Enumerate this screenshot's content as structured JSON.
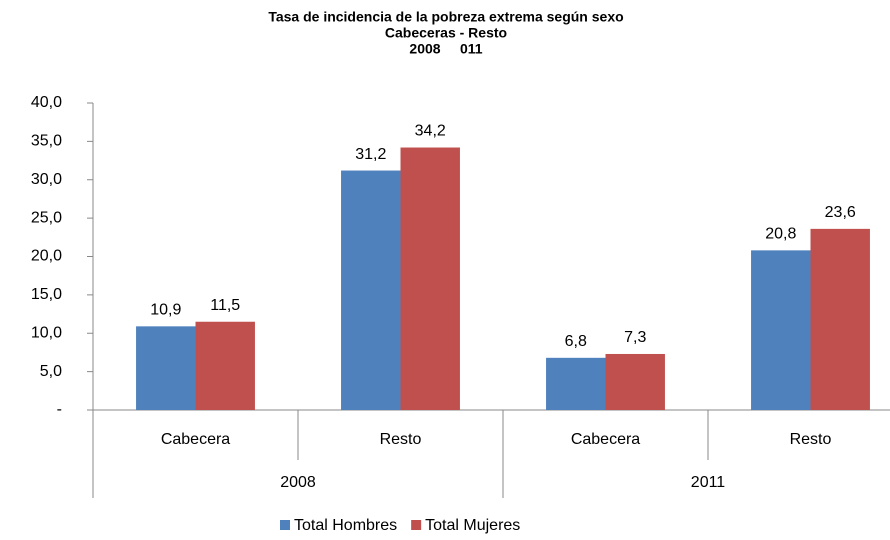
{
  "chart_data": {
    "type": "bar",
    "title": "Tasa de incidencia de la pobreza extrema según sexo",
    "subtitle": [
      "Cabeceras - Resto",
      "2008     011"
    ],
    "categories": [
      "Cabecera",
      "Resto",
      "Cabecera",
      "Resto"
    ],
    "category_groups": [
      "2008",
      "2011"
    ],
    "series": [
      {
        "name": "Total Hombres",
        "color": "#4f81bd",
        "values": [
          10.9,
          31.2,
          6.8,
          20.8
        ],
        "value_labels": [
          "10,9",
          "31,2",
          "6,8",
          "20,8"
        ]
      },
      {
        "name": "Total Mujeres",
        "color": "#c0504d",
        "values": [
          11.5,
          34.2,
          7.3,
          23.6
        ],
        "value_labels": [
          "11,5",
          "34,2",
          "7,3",
          "23,6"
        ]
      }
    ],
    "ylim": [
      0,
      40
    ],
    "yticks": [
      {
        "value": 0,
        "label": "-"
      },
      {
        "value": 5,
        "label": "5,0"
      },
      {
        "value": 10,
        "label": "10,0"
      },
      {
        "value": 15,
        "label": "15,0"
      },
      {
        "value": 20,
        "label": "20,0"
      },
      {
        "value": 25,
        "label": "25,0"
      },
      {
        "value": 30,
        "label": "30,0"
      },
      {
        "value": 35,
        "label": "35,0"
      },
      {
        "value": 40,
        "label": "40,0"
      }
    ],
    "grid": false,
    "legend": "bottom"
  }
}
